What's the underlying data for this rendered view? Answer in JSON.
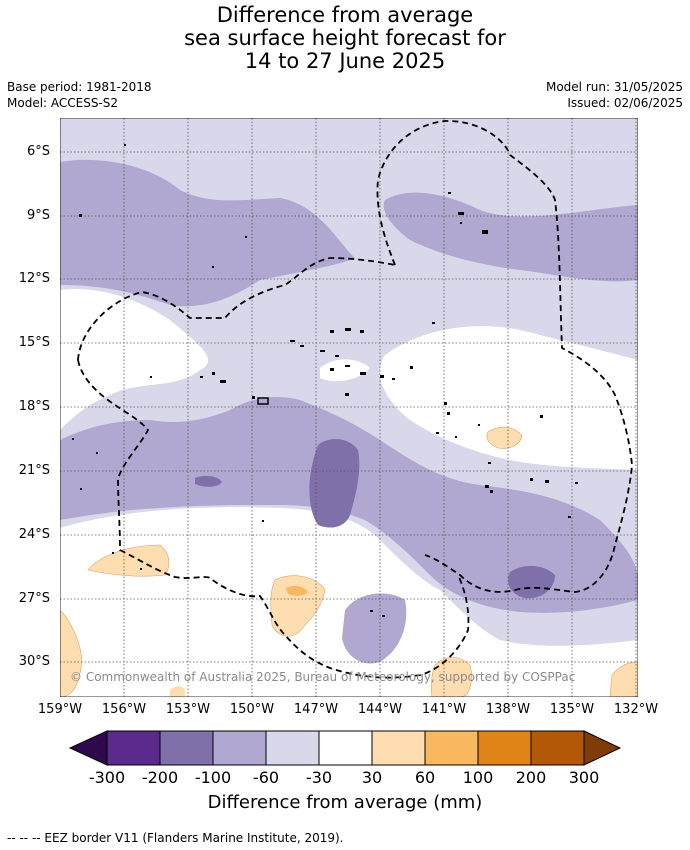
{
  "title": {
    "line1": "Difference from average",
    "line2": "sea surface height forecast for",
    "line3": "14 to 27 June 2025"
  },
  "meta": {
    "base_period": "Base period: 1981-2018",
    "model": "Model: ACCESS-S2",
    "model_run": "Model run: 31/05/2025",
    "issued": "Issued: 02/06/2025"
  },
  "map": {
    "lat_labels": [
      "6°S",
      "9°S",
      "12°S",
      "15°S",
      "18°S",
      "21°S",
      "24°S",
      "27°S",
      "30°S"
    ],
    "lon_labels": [
      "159°W",
      "156°W",
      "153°W",
      "150°W",
      "147°W",
      "144°W",
      "141°W",
      "138°W",
      "135°W",
      "132°W"
    ],
    "copyright": "© Commonwealth of Australia 2025, Bureau of Meteorology, supported by COSPPac"
  },
  "colorbar": {
    "title": "Difference from average (mm)",
    "labels": [
      "-300",
      "-200",
      "-100",
      "-60",
      "-30",
      "30",
      "60",
      "100",
      "200",
      "300"
    ],
    "colors": [
      "#2e0a4d",
      "#5a2a8c",
      "#8070aa",
      "#b0a8d0",
      "#d8d8ea",
      "#ffffff",
      "#fedeb0",
      "#f9b860",
      "#e08418",
      "#b35806",
      "#7f3b08"
    ]
  },
  "footnote": "--  --  -- EEZ border V11 (Flanders Marine Institute, 2019)."
}
